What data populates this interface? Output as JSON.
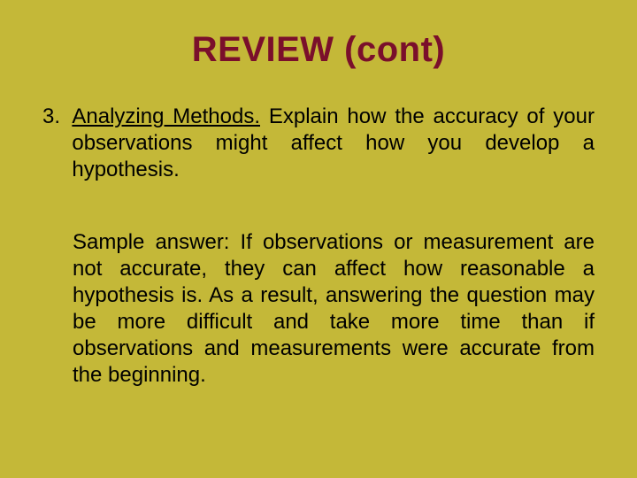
{
  "background_color": "#c4b838",
  "title_color": "#7a0f2b",
  "text_color": "#000000",
  "font_family": "Arial",
  "title": {
    "text": "REVIEW  (cont)",
    "fontsize": 40,
    "weight": "bold"
  },
  "item": {
    "number": "3.  ",
    "underlined": "Analyzing Methods.",
    "rest": "  Explain how the accuracy of your observations might affect how you develop a hypothesis.",
    "fontsize": 24,
    "align": "justify"
  },
  "answer": {
    "text": "Sample answer:  If observations or measurement are not accurate, they can affect how reasonable a hypothesis is.  As a result, answering the question may be more difficult and take more time than if observations and measurements were accurate from the beginning.",
    "fontsize": 24,
    "align": "justify"
  }
}
